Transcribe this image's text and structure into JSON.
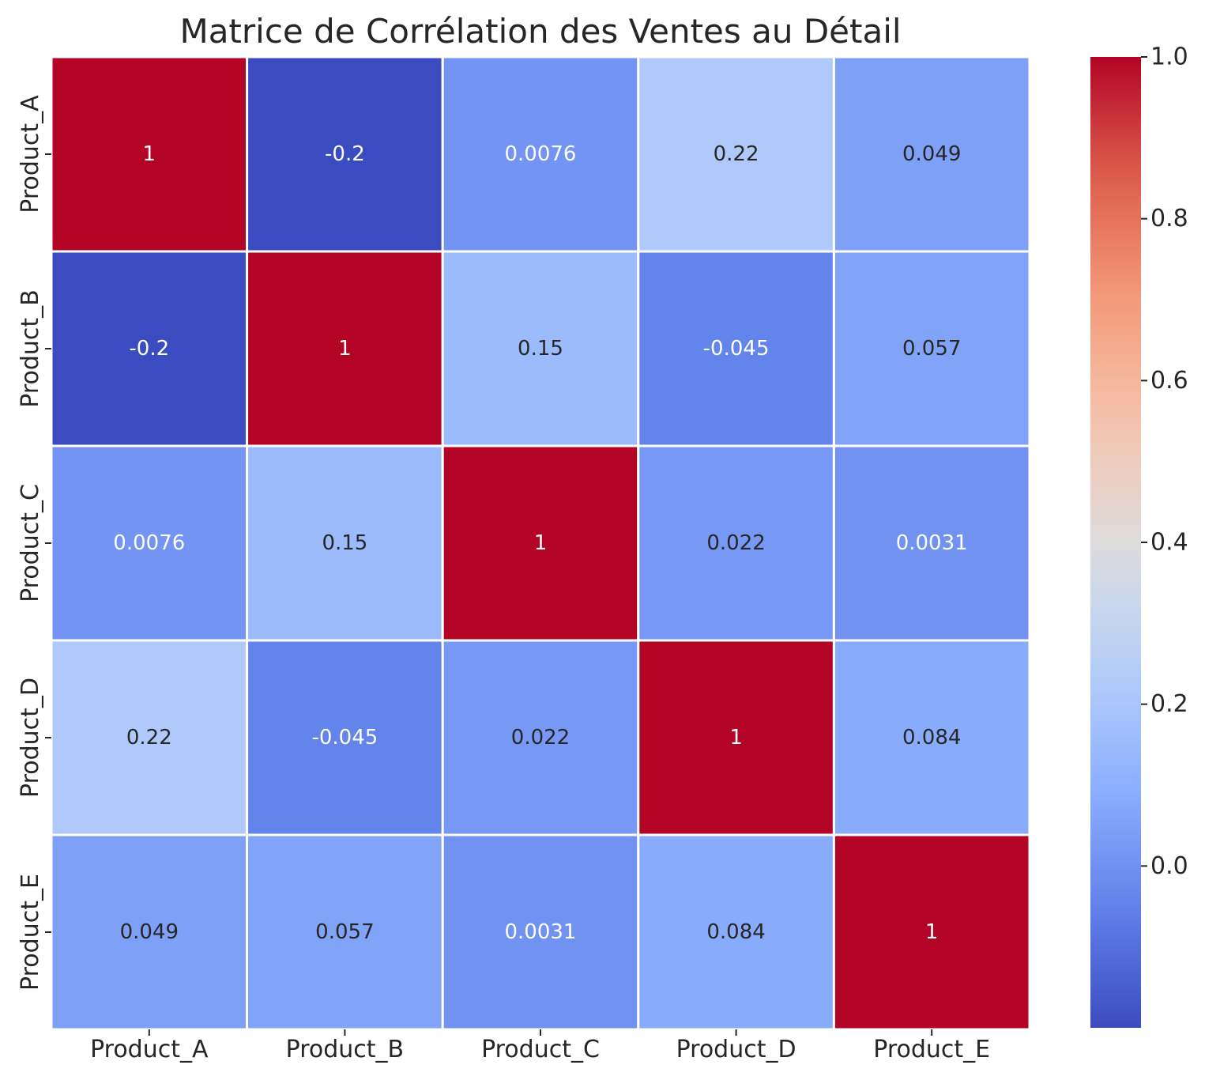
{
  "chart_data": {
    "type": "heatmap",
    "title": "Matrice de Corrélation des Ventes au Détail",
    "xlabel": "",
    "ylabel": "",
    "x_categories": [
      "Product_A",
      "Product_B",
      "Product_C",
      "Product_D",
      "Product_E"
    ],
    "y_categories": [
      "Product_A",
      "Product_B",
      "Product_C",
      "Product_D",
      "Product_E"
    ],
    "values": [
      [
        1,
        -0.2,
        0.0076,
        0.22,
        0.049
      ],
      [
        -0.2,
        1,
        0.15,
        -0.045,
        0.057
      ],
      [
        0.0076,
        0.15,
        1,
        0.022,
        0.0031
      ],
      [
        0.22,
        -0.045,
        0.022,
        1,
        0.084
      ],
      [
        0.049,
        0.057,
        0.0031,
        0.084,
        1
      ]
    ],
    "cell_labels": [
      [
        "1",
        "-0.2",
        "0.0076",
        "0.22",
        "0.049"
      ],
      [
        "-0.2",
        "1",
        "0.15",
        "-0.045",
        "0.057"
      ],
      [
        "0.0076",
        "0.15",
        "1",
        "0.022",
        "0.0031"
      ],
      [
        "0.22",
        "-0.045",
        "0.022",
        "1",
        "0.084"
      ],
      [
        "0.049",
        "0.057",
        "0.0031",
        "0.084",
        "1"
      ]
    ],
    "colormap": "coolwarm",
    "color_range": [
      -0.2,
      1.0
    ],
    "colorbar": {
      "ticks": [
        0.0,
        0.2,
        0.4,
        0.6,
        0.8,
        1.0
      ],
      "tick_labels": [
        "0.0",
        "0.2",
        "0.4",
        "0.6",
        "0.8",
        "1.0"
      ],
      "placement": "right"
    },
    "grid": false,
    "cell_separator_color": "#ffffff"
  }
}
